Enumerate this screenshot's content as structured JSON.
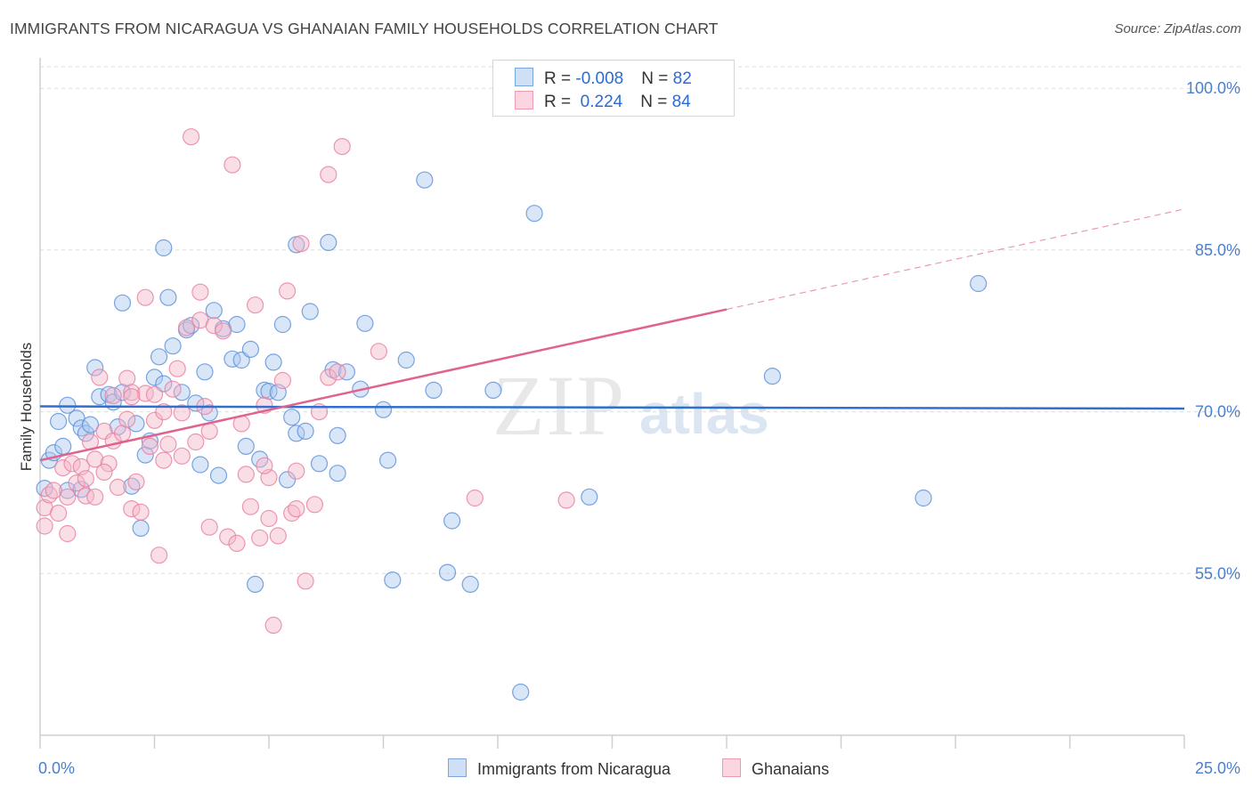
{
  "header": {
    "title": "IMMIGRANTS FROM NICARAGUA VS GHANAIAN FAMILY HOUSEHOLDS CORRELATION CHART",
    "source": "Source: ZipAtlas.com"
  },
  "watermark": {
    "zip": "ZIP",
    "atlas": "atlas"
  },
  "legend": {
    "rows": [
      {
        "r_label": "R = ",
        "r_value": "-0.008",
        "n_label": "N = ",
        "n_value": "82",
        "color": "#a8c8f0"
      },
      {
        "r_label": "R = ",
        "r_value": " 0.224",
        "n_label": "N = ",
        "n_value": "84",
        "color": "#f5b5c8"
      }
    ]
  },
  "bottom_legend": [
    {
      "label": "Immigrants from Nicaragua",
      "color": "#a8c8f0"
    },
    {
      "label": "Ghanaians",
      "color": "#f5b5c8"
    }
  ],
  "chart_data": {
    "type": "scatter",
    "ylabel": "Family Households",
    "xlim": [
      0,
      25
    ],
    "ylim": [
      40,
      102
    ],
    "x_tick_labels": [
      "0.0%",
      "25.0%"
    ],
    "y_ticks": [
      55,
      70,
      85,
      100
    ],
    "y_tick_labels": [
      "55.0%",
      "70.0%",
      "85.0%",
      "100.0%"
    ],
    "grid": true,
    "series": [
      {
        "name": "Immigrants from Nicaragua",
        "color": "#5a8fd8",
        "fill": "#a8c8f0",
        "trend": {
          "x": [
            0,
            25
          ],
          "y": [
            70.5,
            70.3
          ]
        },
        "points": [
          [
            0.2,
            65.5
          ],
          [
            0.3,
            66.2
          ],
          [
            0.4,
            69.1
          ],
          [
            0.5,
            66.8
          ],
          [
            0.6,
            62.7
          ],
          [
            0.6,
            70.6
          ],
          [
            0.8,
            69.4
          ],
          [
            0.9,
            68.5
          ],
          [
            0.9,
            62.8
          ],
          [
            1.0,
            68.0
          ],
          [
            1.1,
            68.8
          ],
          [
            1.2,
            74.1
          ],
          [
            1.3,
            71.4
          ],
          [
            1.5,
            71.6
          ],
          [
            1.6,
            70.9
          ],
          [
            1.7,
            68.6
          ],
          [
            1.8,
            71.8
          ],
          [
            1.8,
            80.1
          ],
          [
            2.0,
            63.1
          ],
          [
            2.1,
            68.9
          ],
          [
            2.2,
            59.2
          ],
          [
            2.3,
            66.0
          ],
          [
            2.4,
            67.3
          ],
          [
            2.5,
            73.2
          ],
          [
            2.6,
            75.1
          ],
          [
            2.7,
            72.6
          ],
          [
            2.7,
            85.2
          ],
          [
            2.8,
            80.6
          ],
          [
            2.9,
            76.1
          ],
          [
            3.1,
            71.8
          ],
          [
            3.2,
            77.6
          ],
          [
            3.3,
            78.0
          ],
          [
            3.4,
            70.8
          ],
          [
            3.5,
            65.1
          ],
          [
            3.6,
            73.7
          ],
          [
            3.7,
            69.9
          ],
          [
            3.8,
            79.4
          ],
          [
            3.9,
            64.1
          ],
          [
            4.0,
            77.7
          ],
          [
            4.2,
            74.9
          ],
          [
            4.3,
            78.1
          ],
          [
            4.4,
            74.8
          ],
          [
            4.5,
            66.8
          ],
          [
            4.6,
            75.8
          ],
          [
            4.7,
            54.0
          ],
          [
            4.8,
            65.6
          ],
          [
            4.9,
            72.0
          ],
          [
            5.0,
            71.9
          ],
          [
            5.1,
            74.6
          ],
          [
            5.2,
            71.8
          ],
          [
            5.3,
            78.1
          ],
          [
            5.4,
            63.7
          ],
          [
            5.5,
            69.5
          ],
          [
            5.6,
            68.0
          ],
          [
            5.6,
            85.5
          ],
          [
            5.8,
            68.2
          ],
          [
            5.9,
            79.3
          ],
          [
            6.1,
            65.2
          ],
          [
            6.3,
            85.7
          ],
          [
            6.4,
            73.9
          ],
          [
            6.5,
            64.3
          ],
          [
            6.5,
            67.8
          ],
          [
            6.7,
            73.7
          ],
          [
            7.0,
            72.1
          ],
          [
            7.1,
            78.2
          ],
          [
            7.5,
            70.2
          ],
          [
            7.6,
            65.5
          ],
          [
            7.7,
            54.4
          ],
          [
            8.0,
            74.8
          ],
          [
            8.4,
            91.5
          ],
          [
            8.6,
            72.0
          ],
          [
            8.9,
            55.1
          ],
          [
            9.0,
            59.9
          ],
          [
            9.4,
            54.0
          ],
          [
            9.9,
            72.0
          ],
          [
            10.5,
            44.0
          ],
          [
            10.8,
            88.4
          ],
          [
            12.0,
            62.1
          ],
          [
            16.0,
            73.3
          ],
          [
            19.3,
            62.0
          ],
          [
            20.5,
            81.9
          ],
          [
            0.1,
            62.9
          ]
        ]
      },
      {
        "name": "Ghanaians",
        "color": "#e87ea0",
        "fill": "#f5b5c8",
        "trend": {
          "x": [
            0,
            15
          ],
          "y": [
            65.5,
            79.5
          ]
        },
        "trend_ext": {
          "x": [
            15,
            25
          ],
          "y": [
            79.5,
            88.8
          ]
        },
        "points": [
          [
            0.1,
            59.4
          ],
          [
            0.1,
            61.1
          ],
          [
            0.2,
            62.3
          ],
          [
            0.3,
            62.7
          ],
          [
            0.4,
            60.6
          ],
          [
            0.5,
            64.8
          ],
          [
            0.6,
            62.1
          ],
          [
            0.6,
            58.7
          ],
          [
            0.7,
            65.2
          ],
          [
            0.8,
            63.4
          ],
          [
            0.9,
            64.9
          ],
          [
            1.0,
            63.8
          ],
          [
            1.0,
            62.2
          ],
          [
            1.1,
            67.2
          ],
          [
            1.2,
            65.6
          ],
          [
            1.2,
            62.1
          ],
          [
            1.3,
            73.2
          ],
          [
            1.4,
            68.2
          ],
          [
            1.5,
            65.2
          ],
          [
            1.6,
            71.5
          ],
          [
            1.6,
            67.3
          ],
          [
            1.7,
            63.0
          ],
          [
            1.8,
            68.0
          ],
          [
            1.9,
            69.3
          ],
          [
            1.9,
            73.1
          ],
          [
            2.0,
            71.8
          ],
          [
            2.0,
            61.0
          ],
          [
            2.1,
            63.5
          ],
          [
            2.2,
            60.7
          ],
          [
            2.3,
            71.7
          ],
          [
            2.3,
            80.6
          ],
          [
            2.4,
            66.8
          ],
          [
            2.5,
            69.2
          ],
          [
            2.5,
            71.6
          ],
          [
            2.6,
            56.7
          ],
          [
            2.7,
            70.0
          ],
          [
            2.7,
            65.5
          ],
          [
            2.8,
            67.0
          ],
          [
            2.9,
            72.1
          ],
          [
            3.0,
            74.0
          ],
          [
            3.1,
            69.9
          ],
          [
            3.1,
            65.9
          ],
          [
            3.2,
            77.8
          ],
          [
            3.3,
            95.5
          ],
          [
            3.4,
            67.2
          ],
          [
            3.5,
            78.5
          ],
          [
            3.5,
            81.1
          ],
          [
            3.6,
            70.5
          ],
          [
            3.7,
            68.2
          ],
          [
            3.7,
            59.3
          ],
          [
            3.8,
            78.0
          ],
          [
            4.0,
            77.5
          ],
          [
            4.1,
            58.4
          ],
          [
            4.2,
            92.9
          ],
          [
            4.3,
            57.8
          ],
          [
            4.4,
            68.9
          ],
          [
            4.5,
            64.2
          ],
          [
            4.6,
            61.2
          ],
          [
            4.7,
            79.9
          ],
          [
            4.8,
            58.3
          ],
          [
            4.9,
            70.6
          ],
          [
            5.0,
            60.1
          ],
          [
            5.0,
            63.9
          ],
          [
            5.1,
            50.2
          ],
          [
            5.2,
            58.5
          ],
          [
            5.3,
            72.9
          ],
          [
            5.4,
            81.2
          ],
          [
            5.5,
            60.6
          ],
          [
            5.6,
            64.5
          ],
          [
            5.6,
            61.0
          ],
          [
            5.7,
            85.6
          ],
          [
            5.8,
            54.3
          ],
          [
            6.0,
            61.4
          ],
          [
            6.1,
            70.0
          ],
          [
            6.3,
            73.2
          ],
          [
            6.3,
            92.0
          ],
          [
            6.5,
            73.7
          ],
          [
            6.6,
            94.6
          ],
          [
            7.4,
            75.6
          ],
          [
            9.5,
            62.0
          ],
          [
            11.5,
            61.8
          ],
          [
            2.0,
            71.4
          ],
          [
            1.4,
            64.4
          ],
          [
            4.9,
            65.0
          ]
        ]
      }
    ]
  }
}
